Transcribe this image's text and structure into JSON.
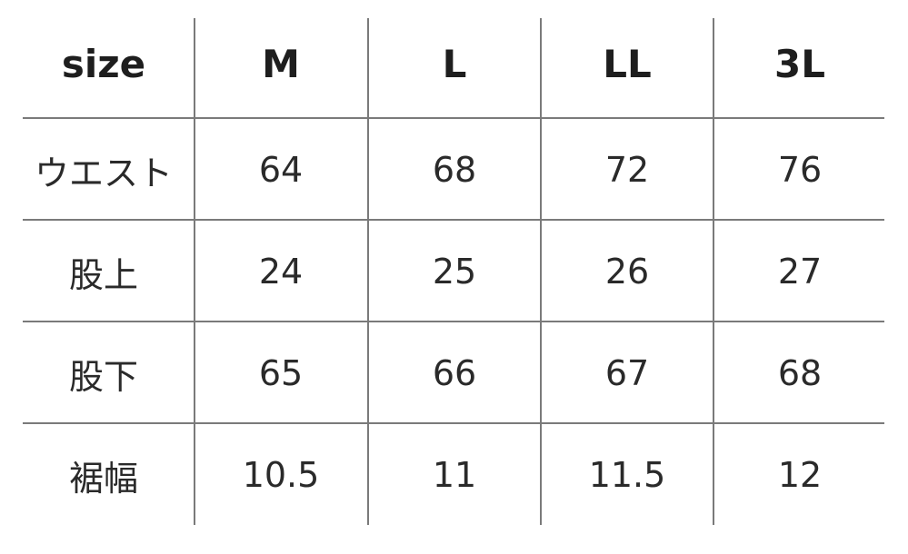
{
  "table": {
    "header": [
      "size",
      "M",
      "L",
      "LL",
      "3L"
    ],
    "rows": [
      [
        "ウエスト",
        "64",
        "68",
        "72",
        "76"
      ],
      [
        "股上",
        "24",
        "25",
        "26",
        "27"
      ],
      [
        "股下",
        "65",
        "66",
        "67",
        "68"
      ],
      [
        "裾幅",
        "10.5",
        "11",
        "11.5",
        "12"
      ]
    ]
  }
}
